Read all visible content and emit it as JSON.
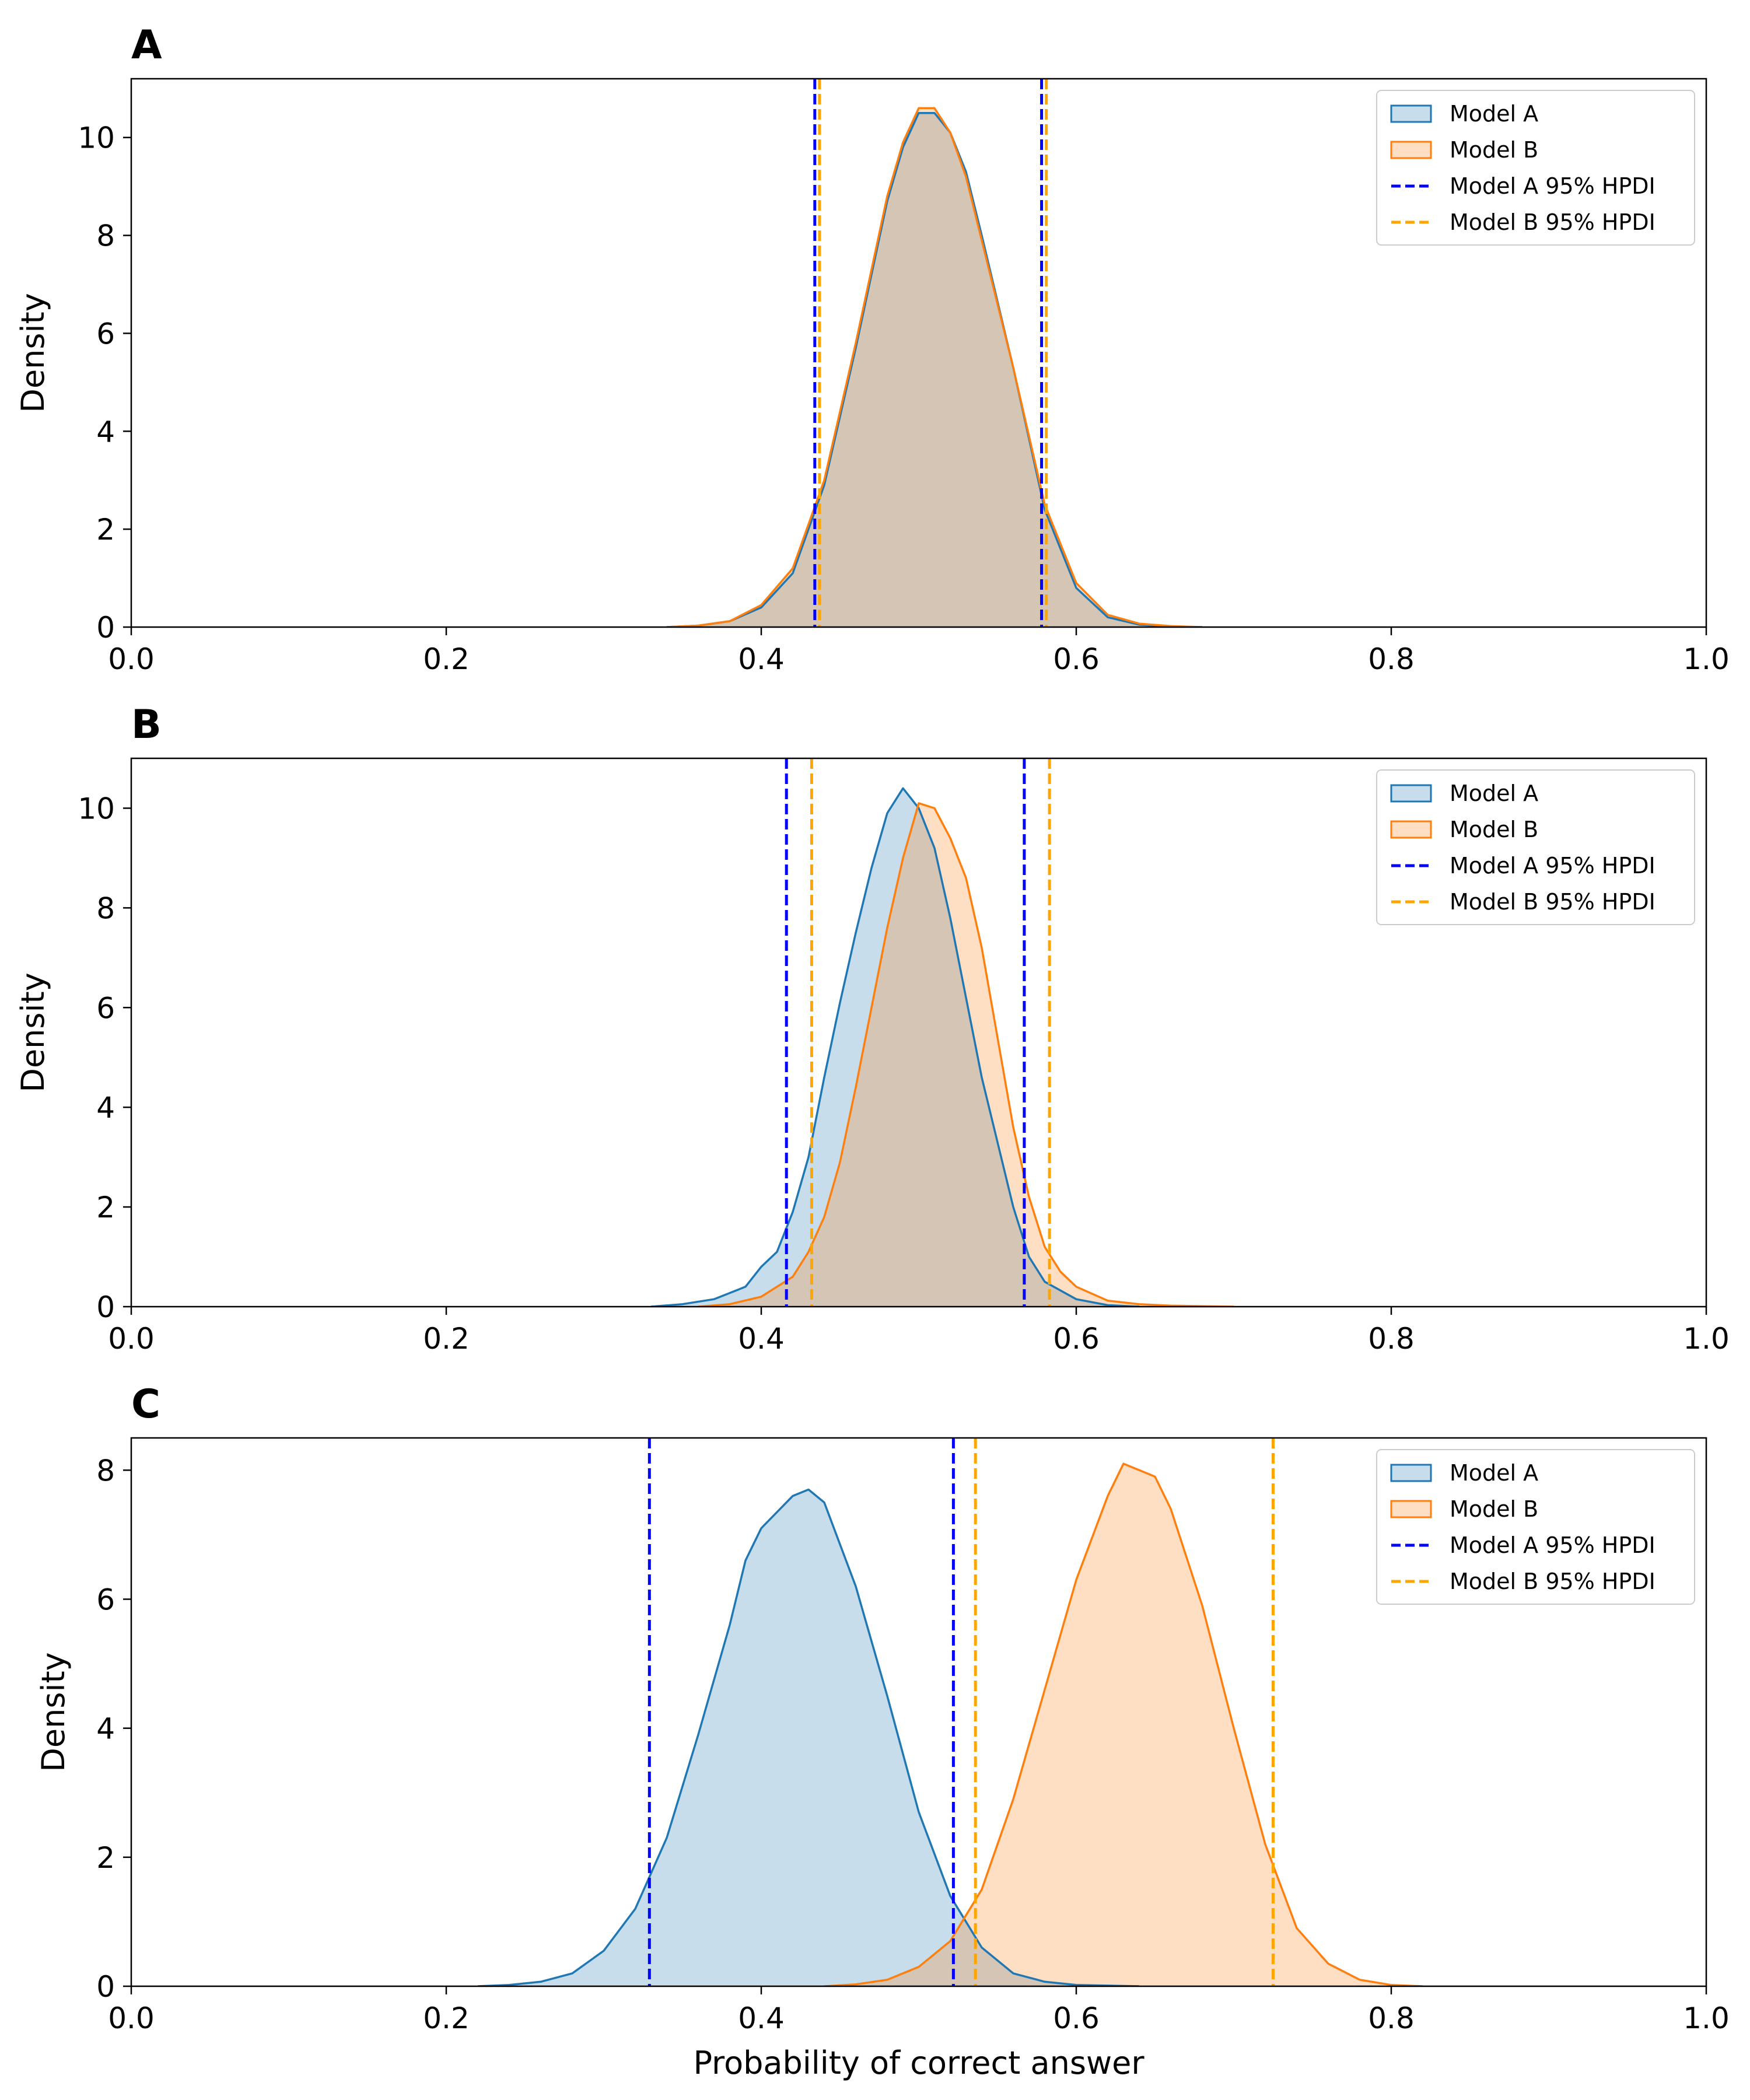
{
  "colors": {
    "model_a_line": "#1f77b4",
    "model_a_fill": "#1f77b4",
    "model_b_line": "#ff7f0e",
    "model_b_fill": "#ff7f0e",
    "model_a_hpdi": "#0000ff",
    "model_b_hpdi": "#ffa500"
  },
  "chart_data": [
    {
      "type": "area",
      "panel": "A",
      "xlabel": "",
      "ylabel": "Density",
      "xlim": [
        0,
        1
      ],
      "ylim": [
        0,
        11.2
      ],
      "xticks": [
        "0.0",
        "0.2",
        "0.4",
        "0.6",
        "0.8",
        "1.0"
      ],
      "yticks": [
        "0",
        "2",
        "4",
        "6",
        "8",
        "10"
      ],
      "legend": {
        "position": "top-right",
        "entries": [
          "Model A",
          "Model B",
          "Model A 95% HPDI",
          "Model B 95% HPDI"
        ]
      },
      "series": [
        {
          "name": "Model A",
          "x": [
            0.34,
            0.36,
            0.38,
            0.4,
            0.42,
            0.44,
            0.46,
            0.48,
            0.49,
            0.5,
            0.51,
            0.52,
            0.53,
            0.54,
            0.56,
            0.58,
            0.6,
            0.62,
            0.64,
            0.66,
            0.68
          ],
          "y": [
            0.0,
            0.03,
            0.12,
            0.4,
            1.1,
            2.9,
            5.7,
            8.7,
            9.8,
            10.5,
            10.5,
            10.1,
            9.3,
            8.0,
            5.3,
            2.4,
            0.8,
            0.2,
            0.05,
            0.01,
            0.0
          ]
        },
        {
          "name": "Model B",
          "x": [
            0.34,
            0.36,
            0.38,
            0.4,
            0.42,
            0.44,
            0.46,
            0.48,
            0.49,
            0.5,
            0.51,
            0.52,
            0.53,
            0.54,
            0.56,
            0.58,
            0.6,
            0.62,
            0.64,
            0.66,
            0.68
          ],
          "y": [
            0.0,
            0.03,
            0.12,
            0.45,
            1.2,
            3.0,
            5.8,
            8.8,
            9.9,
            10.6,
            10.6,
            10.1,
            9.2,
            7.9,
            5.3,
            2.5,
            0.9,
            0.25,
            0.07,
            0.02,
            0.0
          ]
        }
      ],
      "hpdi": [
        {
          "name": "Model A 95% HPDI",
          "lower": 0.434,
          "upper": 0.578
        },
        {
          "name": "Model B 95% HPDI",
          "lower": 0.437,
          "upper": 0.581
        }
      ]
    },
    {
      "type": "area",
      "panel": "B",
      "xlabel": "",
      "ylabel": "Density",
      "xlim": [
        0,
        1
      ],
      "ylim": [
        0,
        11.0
      ],
      "xticks": [
        "0.0",
        "0.2",
        "0.4",
        "0.6",
        "0.8",
        "1.0"
      ],
      "yticks": [
        "0",
        "2",
        "4",
        "6",
        "8",
        "10"
      ],
      "legend": {
        "position": "top-right",
        "entries": [
          "Model A",
          "Model B",
          "Model A 95% HPDI",
          "Model B 95% HPDI"
        ]
      },
      "series": [
        {
          "name": "Model A",
          "x": [
            0.33,
            0.35,
            0.37,
            0.39,
            0.4,
            0.41,
            0.42,
            0.43,
            0.44,
            0.45,
            0.46,
            0.47,
            0.48,
            0.49,
            0.5,
            0.51,
            0.52,
            0.53,
            0.54,
            0.55,
            0.56,
            0.57,
            0.58,
            0.6,
            0.62,
            0.64
          ],
          "y": [
            0.0,
            0.05,
            0.15,
            0.4,
            0.8,
            1.1,
            1.9,
            3.0,
            4.6,
            6.1,
            7.5,
            8.8,
            9.9,
            10.4,
            10.0,
            9.2,
            7.8,
            6.2,
            4.6,
            3.3,
            2.0,
            1.0,
            0.5,
            0.15,
            0.03,
            0.0
          ]
        },
        {
          "name": "Model B",
          "x": [
            0.36,
            0.38,
            0.4,
            0.42,
            0.43,
            0.44,
            0.45,
            0.46,
            0.47,
            0.48,
            0.49,
            0.5,
            0.51,
            0.52,
            0.53,
            0.54,
            0.55,
            0.56,
            0.57,
            0.58,
            0.59,
            0.6,
            0.62,
            0.64,
            0.66,
            0.68,
            0.7
          ],
          "y": [
            0.0,
            0.05,
            0.2,
            0.6,
            1.1,
            1.8,
            2.9,
            4.4,
            6.0,
            7.6,
            9.0,
            10.1,
            10.0,
            9.4,
            8.6,
            7.2,
            5.4,
            3.6,
            2.2,
            1.2,
            0.7,
            0.4,
            0.12,
            0.05,
            0.02,
            0.01,
            0.0
          ]
        }
      ],
      "hpdi": [
        {
          "name": "Model A 95% HPDI",
          "lower": 0.416,
          "upper": 0.567
        },
        {
          "name": "Model B 95% HPDI",
          "lower": 0.432,
          "upper": 0.583
        }
      ]
    },
    {
      "type": "area",
      "panel": "C",
      "xlabel": "Probability of correct answer",
      "ylabel": "Density",
      "xlim": [
        0,
        1
      ],
      "ylim": [
        0,
        8.5
      ],
      "xticks": [
        "0.0",
        "0.2",
        "0.4",
        "0.6",
        "0.8",
        "1.0"
      ],
      "yticks": [
        "0",
        "2",
        "4",
        "6",
        "8"
      ],
      "legend": {
        "position": "top-right",
        "entries": [
          "Model A",
          "Model B",
          "Model A 95% HPDI",
          "Model B 95% HPDI"
        ]
      },
      "series": [
        {
          "name": "Model A",
          "x": [
            0.22,
            0.24,
            0.26,
            0.28,
            0.3,
            0.32,
            0.34,
            0.36,
            0.38,
            0.39,
            0.4,
            0.42,
            0.43,
            0.44,
            0.46,
            0.48,
            0.5,
            0.52,
            0.54,
            0.56,
            0.58,
            0.6,
            0.62,
            0.64
          ],
          "y": [
            0.0,
            0.02,
            0.07,
            0.2,
            0.55,
            1.2,
            2.3,
            3.9,
            5.6,
            6.6,
            7.1,
            7.6,
            7.7,
            7.5,
            6.2,
            4.5,
            2.7,
            1.4,
            0.6,
            0.2,
            0.07,
            0.02,
            0.01,
            0.0
          ]
        },
        {
          "name": "Model B",
          "x": [
            0.44,
            0.46,
            0.48,
            0.5,
            0.52,
            0.54,
            0.56,
            0.58,
            0.6,
            0.62,
            0.63,
            0.64,
            0.65,
            0.66,
            0.68,
            0.7,
            0.72,
            0.74,
            0.76,
            0.78,
            0.8,
            0.82
          ],
          "y": [
            0.0,
            0.03,
            0.1,
            0.3,
            0.7,
            1.5,
            2.9,
            4.6,
            6.3,
            7.6,
            8.1,
            8.0,
            7.9,
            7.4,
            5.9,
            4.0,
            2.2,
            0.9,
            0.35,
            0.1,
            0.02,
            0.0
          ]
        }
      ],
      "hpdi": [
        {
          "name": "Model A 95% HPDI",
          "lower": 0.329,
          "upper": 0.522
        },
        {
          "name": "Model B 95% HPDI",
          "lower": 0.536,
          "upper": 0.725
        }
      ]
    }
  ]
}
